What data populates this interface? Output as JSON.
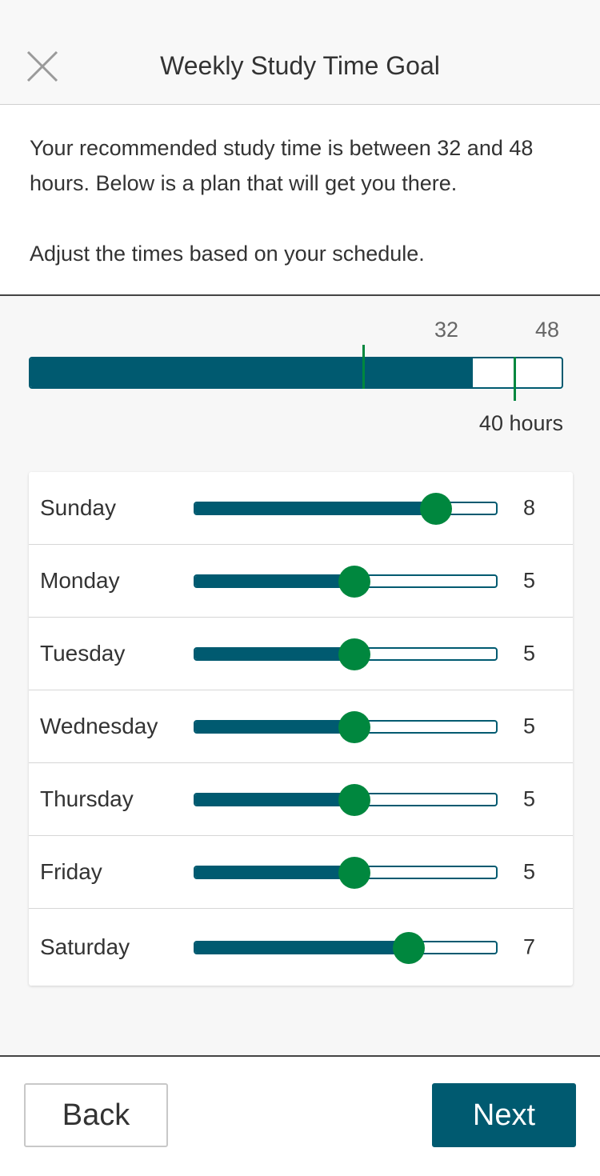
{
  "header": {
    "title": "Weekly Study Time Goal",
    "close_icon": "close-icon"
  },
  "intro": {
    "line1": "Your recommended study time is between 32 and 48 hours. Below is a plan that will get you there.",
    "line2": "Adjust the times based on your schedule."
  },
  "total": {
    "min_label": "32",
    "max_label": "48",
    "min": 32,
    "max": 48,
    "current": 40,
    "scale_max": 48,
    "hours_label": "40 hours"
  },
  "days": [
    {
      "name": "Sunday",
      "value": "8",
      "fraction": 0.8
    },
    {
      "name": "Monday",
      "value": "5",
      "fraction": 0.53
    },
    {
      "name": "Tuesday",
      "value": "5",
      "fraction": 0.53
    },
    {
      "name": "Wednesday",
      "value": "5",
      "fraction": 0.53
    },
    {
      "name": "Thursday",
      "value": "5",
      "fraction": 0.53
    },
    {
      "name": "Friday",
      "value": "5",
      "fraction": 0.53
    },
    {
      "name": "Saturday",
      "value": "7",
      "fraction": 0.71
    }
  ],
  "footer": {
    "back_label": "Back",
    "next_label": "Next"
  },
  "colors": {
    "primary": "#005a70",
    "accent": "#00873e"
  }
}
